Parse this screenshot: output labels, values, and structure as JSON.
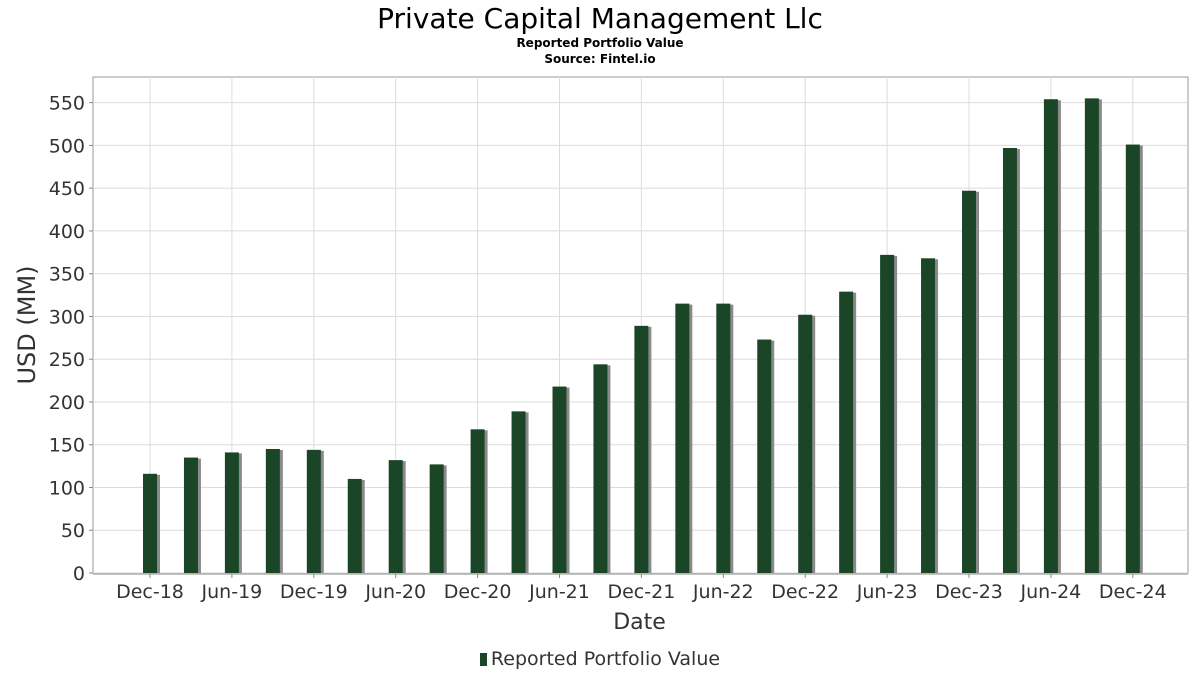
{
  "header": {
    "title": "Private Capital Management Llc",
    "subtitle": "Reported Portfolio Value",
    "source": "Source: Fintel.io"
  },
  "legend": {
    "label": "Reported Portfolio Value"
  },
  "colors": {
    "bar": "#1a4527",
    "bar_shadow": "#8a8a8a",
    "grid": "#dcdcdc",
    "frame": "#999999"
  },
  "chart_data": {
    "type": "bar",
    "title": "Private Capital Management Llc",
    "subtitle": "Reported Portfolio Value",
    "xlabel": "Date",
    "ylabel": "USD (MM)",
    "ylim": [
      0,
      580
    ],
    "yticks": [
      0,
      50,
      100,
      150,
      200,
      250,
      300,
      350,
      400,
      450,
      500,
      550
    ],
    "grid": true,
    "legend_position": "bottom",
    "categories": [
      "Dec-18",
      "Mar-19",
      "Jun-19",
      "Sep-19",
      "Dec-19",
      "Mar-20",
      "Jun-20",
      "Sep-20",
      "Dec-20",
      "Mar-21",
      "Jun-21",
      "Sep-21",
      "Dec-21",
      "Mar-22",
      "Jun-22",
      "Sep-22",
      "Dec-22",
      "Mar-23",
      "Jun-23",
      "Sep-23",
      "Dec-23",
      "Mar-24",
      "Jun-24",
      "Sep-24",
      "Dec-24"
    ],
    "xtick_labels": [
      "Dec-18",
      "Jun-19",
      "Dec-19",
      "Jun-20",
      "Dec-20",
      "Jun-21",
      "Dec-21",
      "Jun-22",
      "Dec-22",
      "Jun-23",
      "Dec-23",
      "Jun-24",
      "Dec-24"
    ],
    "series": [
      {
        "name": "Reported Portfolio Value",
        "values": [
          116,
          135,
          141,
          145,
          144,
          110,
          132,
          127,
          168,
          189,
          218,
          244,
          289,
          315,
          315,
          273,
          302,
          329,
          372,
          368,
          447,
          497,
          554,
          555,
          501
        ]
      }
    ]
  }
}
